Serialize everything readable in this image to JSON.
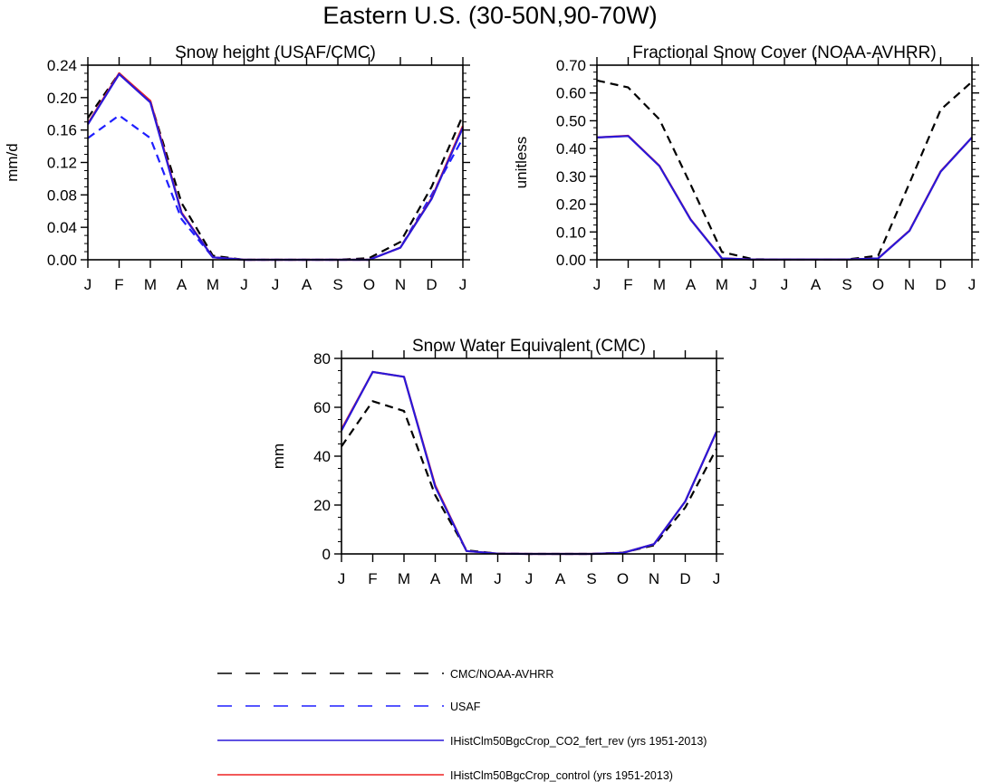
{
  "figure_title": "Eastern U.S. (30-50N,90-70W)",
  "colors": {
    "obs": "#000000",
    "usaf": "#1f1fff",
    "co2": "#2a18d8",
    "control": "#ee2222"
  },
  "legend": [
    {
      "label": "CMC/NOAA-AVHRR",
      "style": "dashed",
      "color": "#000000"
    },
    {
      "label": "USAF",
      "style": "dashed",
      "color": "#1f1fff"
    },
    {
      "label": "IHistClm50BgcCrop_CO2_fert_rev (yrs 1951-2013)",
      "style": "solid",
      "color": "#2a18d8"
    },
    {
      "label": "IHistClm50BgcCrop_control (yrs 1951-2013)",
      "style": "solid",
      "color": "#ee2222"
    }
  ],
  "chart_data": [
    {
      "type": "line",
      "title": "Snow height (USAF/CMC)",
      "ylabel": "mm/d",
      "categories": [
        "J",
        "F",
        "M",
        "A",
        "M",
        "J",
        "J",
        "A",
        "S",
        "O",
        "N",
        "D",
        "J"
      ],
      "ylim": [
        0,
        0.24
      ],
      "yticks": [
        0,
        0.04,
        0.08,
        0.12,
        0.16,
        0.2,
        0.24
      ],
      "ytick_labels": [
        "0.00",
        "0.04",
        "0.08",
        "0.12",
        "0.16",
        "0.20",
        "0.24"
      ],
      "series": [
        {
          "name": "CMC/NOAA-AVHRR",
          "values": [
            0.175,
            0.23,
            0.195,
            0.07,
            0.005,
            0,
            0,
            0,
            0,
            0.002,
            0.022,
            0.09,
            0.178
          ]
        },
        {
          "name": "USAF",
          "values": [
            0.15,
            0.178,
            0.15,
            0.05,
            0.003,
            0,
            0,
            0,
            0,
            0,
            0.015,
            0.08,
            0.15
          ]
        },
        {
          "name": "IHistClm50BgcCrop_control (yrs 1951-2013)",
          "values": [
            0.168,
            0.23,
            0.196,
            0.058,
            0.003,
            0,
            0,
            0,
            0,
            0,
            0.015,
            0.076,
            0.165
          ]
        },
        {
          "name": "IHistClm50BgcCrop_CO2_fert_rev (yrs 1951-2013)",
          "values": [
            0.167,
            0.229,
            0.194,
            0.057,
            0.003,
            0,
            0,
            0,
            0,
            0,
            0.015,
            0.075,
            0.163
          ]
        }
      ]
    },
    {
      "type": "line",
      "title": "Fractional Snow Cover (NOAA-AVHRR)",
      "ylabel": "unitless",
      "categories": [
        "J",
        "F",
        "M",
        "A",
        "M",
        "J",
        "J",
        "A",
        "S",
        "O",
        "N",
        "D",
        "J"
      ],
      "ylim": [
        0,
        0.7
      ],
      "yticks": [
        0,
        0.1,
        0.2,
        0.3,
        0.4,
        0.5,
        0.6,
        0.7
      ],
      "ytick_labels": [
        "0.00",
        "0.10",
        "0.20",
        "0.30",
        "0.40",
        "0.50",
        "0.60",
        "0.70"
      ],
      "series": [
        {
          "name": "CMC/NOAA-AVHRR",
          "values": [
            0.645,
            0.62,
            0.505,
            0.27,
            0.028,
            0.002,
            0.001,
            0.001,
            0.001,
            0.015,
            0.275,
            0.54,
            0.64
          ]
        },
        {
          "name": "IHistClm50BgcCrop_control (yrs 1951-2013)",
          "values": [
            0.44,
            0.446,
            0.338,
            0.145,
            0.005,
            0.001,
            0.001,
            0.001,
            0.001,
            0.005,
            0.105,
            0.318,
            0.44
          ]
        },
        {
          "name": "IHistClm50BgcCrop_CO2_fert_rev (yrs 1951-2013)",
          "values": [
            0.44,
            0.445,
            0.337,
            0.144,
            0.005,
            0.001,
            0.001,
            0.001,
            0.001,
            0.005,
            0.104,
            0.317,
            0.44
          ]
        }
      ]
    },
    {
      "type": "line",
      "title": "Snow Water Equivalent (CMC)",
      "ylabel": "mm",
      "categories": [
        "J",
        "F",
        "M",
        "A",
        "M",
        "J",
        "J",
        "A",
        "S",
        "O",
        "N",
        "D",
        "J"
      ],
      "ylim": [
        0,
        80
      ],
      "yticks": [
        0,
        20,
        40,
        60,
        80
      ],
      "ytick_labels": [
        "0",
        "20",
        "40",
        "60",
        "80"
      ],
      "series": [
        {
          "name": "CMC/NOAA-AVHRR",
          "values": [
            44,
            62.5,
            58.5,
            24,
            1.5,
            0.1,
            0,
            0,
            0,
            0.5,
            3.5,
            19,
            43
          ]
        },
        {
          "name": "IHistClm50BgcCrop_control (yrs 1951-2013)",
          "values": [
            51,
            74.5,
            72.5,
            28,
            1.2,
            0.1,
            0,
            0,
            0,
            0.4,
            4,
            21.5,
            50
          ]
        },
        {
          "name": "IHistClm50BgcCrop_CO2_fert_rev (yrs 1951-2013)",
          "values": [
            50.5,
            74.5,
            72.5,
            27.5,
            1.2,
            0.1,
            0,
            0,
            0,
            0.4,
            4,
            21.5,
            50
          ]
        }
      ]
    }
  ]
}
